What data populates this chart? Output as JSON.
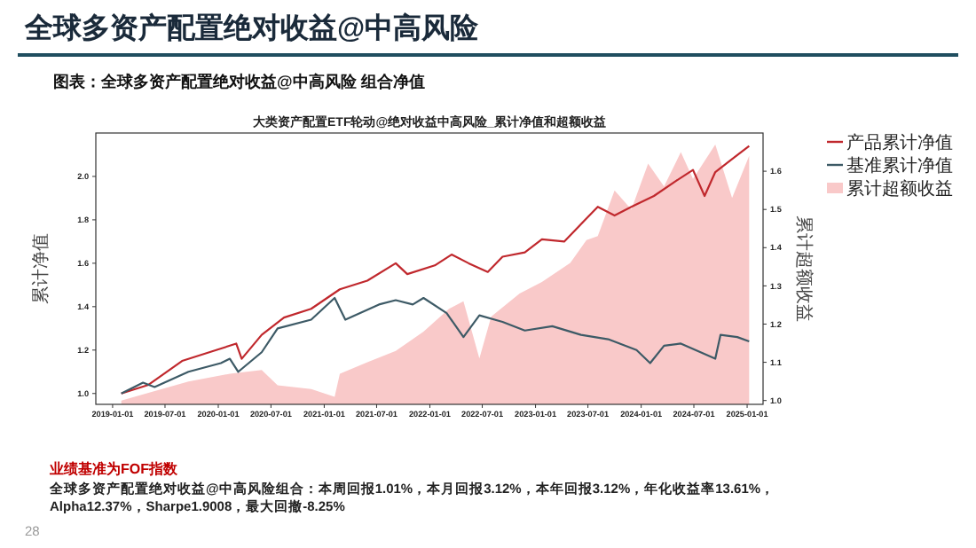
{
  "chart_data": {
    "type": "line",
    "title": "全球多资产配置绝对收益@中高风险",
    "subtitle": "图表：全球多资产配置绝对收益@中高风险 组合净值",
    "annotations": [
      "大类资产配置ETF轮动@绝对收益中高风险_累计净值和超额收益",
      "业绩基准为FOF指数",
      "全球多资产配置绝对收益@中高风险组合：本周回报1.01%，本月回报3.12%，本年回报3.12%，年化收益率13.61%，Alpha12.37%，Sharpe1.9008，最大回撤-8.25%",
      "28"
    ],
    "ylabel": "累计净值",
    "y2label": "累计超额收益",
    "xlim": [
      "2018-11-04",
      "2025-02-25"
    ],
    "ylim": [
      0.95,
      2.2
    ],
    "y2lim": [
      0.99,
      1.7
    ],
    "xticks": [
      "2019-01-01",
      "2019-07-01",
      "2020-01-01",
      "2020-07-01",
      "2021-01-01",
      "2021-07-01",
      "2022-01-01",
      "2022-07-01",
      "2023-01-01",
      "2023-07-01",
      "2024-01-01",
      "2024-07-01",
      "2025-01-01"
    ],
    "yticks": [
      {
        "value": 1.0,
        "label": "1.0"
      },
      {
        "value": 1.2,
        "label": "1.2"
      },
      {
        "value": 1.4,
        "label": "1.4"
      },
      {
        "value": 1.6,
        "label": "1.6"
      },
      {
        "value": 1.8,
        "label": "1.8"
      },
      {
        "value": 2.0,
        "label": "2.0"
      }
    ],
    "y2ticks": [
      {
        "value": 1.0,
        "label": "1.0"
      },
      1.1,
      1.2,
      1.3,
      1.4,
      1.5,
      1.6
    ],
    "legend": "top right",
    "series": [
      {
        "name": "累计超额收益",
        "type": "area",
        "axis": "y2",
        "color": "#f9c9c9",
        "x": [
          "2019-01-31",
          "2019-05-05",
          "2019-09-20",
          "2020-02-10",
          "2020-05-30",
          "2020-07-24",
          "2020-11-17",
          "2021-02-06",
          "2021-02-24",
          "2021-05-30",
          "2021-09-05",
          "2021-12-10",
          "2022-03-08",
          "2022-04-27",
          "2022-06-21",
          "2022-08-01",
          "2022-11-07",
          "2023-01-23",
          "2023-05-01",
          "2023-06-26",
          "2023-08-04",
          "2023-10-01",
          "2023-11-28",
          "2024-01-25",
          "2024-03-20",
          "2024-05-17",
          "2024-06-28",
          "2024-09-13",
          "2024-11-10",
          "2025-01-08"
        ],
        "values": [
          1.0,
          1.02,
          1.05,
          1.07,
          1.08,
          1.04,
          1.03,
          1.01,
          1.07,
          1.1,
          1.13,
          1.18,
          1.24,
          1.26,
          1.11,
          1.22,
          1.28,
          1.31,
          1.36,
          1.42,
          1.43,
          1.55,
          1.5,
          1.62,
          1.56,
          1.65,
          1.58,
          1.67,
          1.53,
          1.64
        ]
      },
      {
        "name": "产品累计净值",
        "color": "#c0282d",
        "x": [
          "2019-01-31",
          "2019-05-05",
          "2019-08-29",
          "2019-12-25",
          "2020-03-03",
          "2020-03-22",
          "2020-05-30",
          "2020-08-15",
          "2020-11-17",
          "2021-02-24",
          "2021-05-30",
          "2021-09-05",
          "2021-10-15",
          "2022-01-18",
          "2022-03-17",
          "2022-05-15",
          "2022-07-20",
          "2022-09-09",
          "2022-11-25",
          "2023-01-23",
          "2023-04-10",
          "2023-06-07",
          "2023-08-04",
          "2023-10-01",
          "2023-11-28",
          "2024-02-14",
          "2024-05-01",
          "2024-06-28",
          "2024-08-07",
          "2024-09-13",
          "2024-11-10",
          "2025-01-08"
        ],
        "values": [
          1.0,
          1.04,
          1.15,
          1.2,
          1.23,
          1.16,
          1.27,
          1.35,
          1.39,
          1.48,
          1.52,
          1.6,
          1.55,
          1.59,
          1.64,
          1.6,
          1.56,
          1.63,
          1.65,
          1.71,
          1.7,
          1.78,
          1.86,
          1.82,
          1.86,
          1.91,
          1.98,
          2.03,
          1.91,
          2.02,
          2.08,
          2.14
        ]
      },
      {
        "name": "基准累计净值",
        "color": "#3d5a66",
        "x": [
          "2019-01-31",
          "2019-04-16",
          "2019-05-26",
          "2019-09-20",
          "2020-01-10",
          "2020-02-10",
          "2020-03-10",
          "2020-05-30",
          "2020-07-24",
          "2020-11-17",
          "2021-02-06",
          "2021-03-15",
          "2021-07-09",
          "2021-09-05",
          "2021-11-03",
          "2021-12-10",
          "2022-02-28",
          "2022-04-27",
          "2022-06-21",
          "2022-09-09",
          "2022-11-25",
          "2023-02-28",
          "2023-06-07",
          "2023-09-09",
          "2023-12-16",
          "2024-02-01",
          "2024-03-20",
          "2024-05-17",
          "2024-09-13",
          "2024-10-01",
          "2024-11-28",
          "2025-01-08"
        ],
        "values": [
          1.0,
          1.05,
          1.03,
          1.1,
          1.14,
          1.16,
          1.1,
          1.19,
          1.3,
          1.34,
          1.44,
          1.34,
          1.41,
          1.43,
          1.41,
          1.44,
          1.37,
          1.26,
          1.36,
          1.33,
          1.29,
          1.31,
          1.27,
          1.25,
          1.2,
          1.14,
          1.22,
          1.23,
          1.16,
          1.27,
          1.26,
          1.24
        ]
      }
    ]
  }
}
